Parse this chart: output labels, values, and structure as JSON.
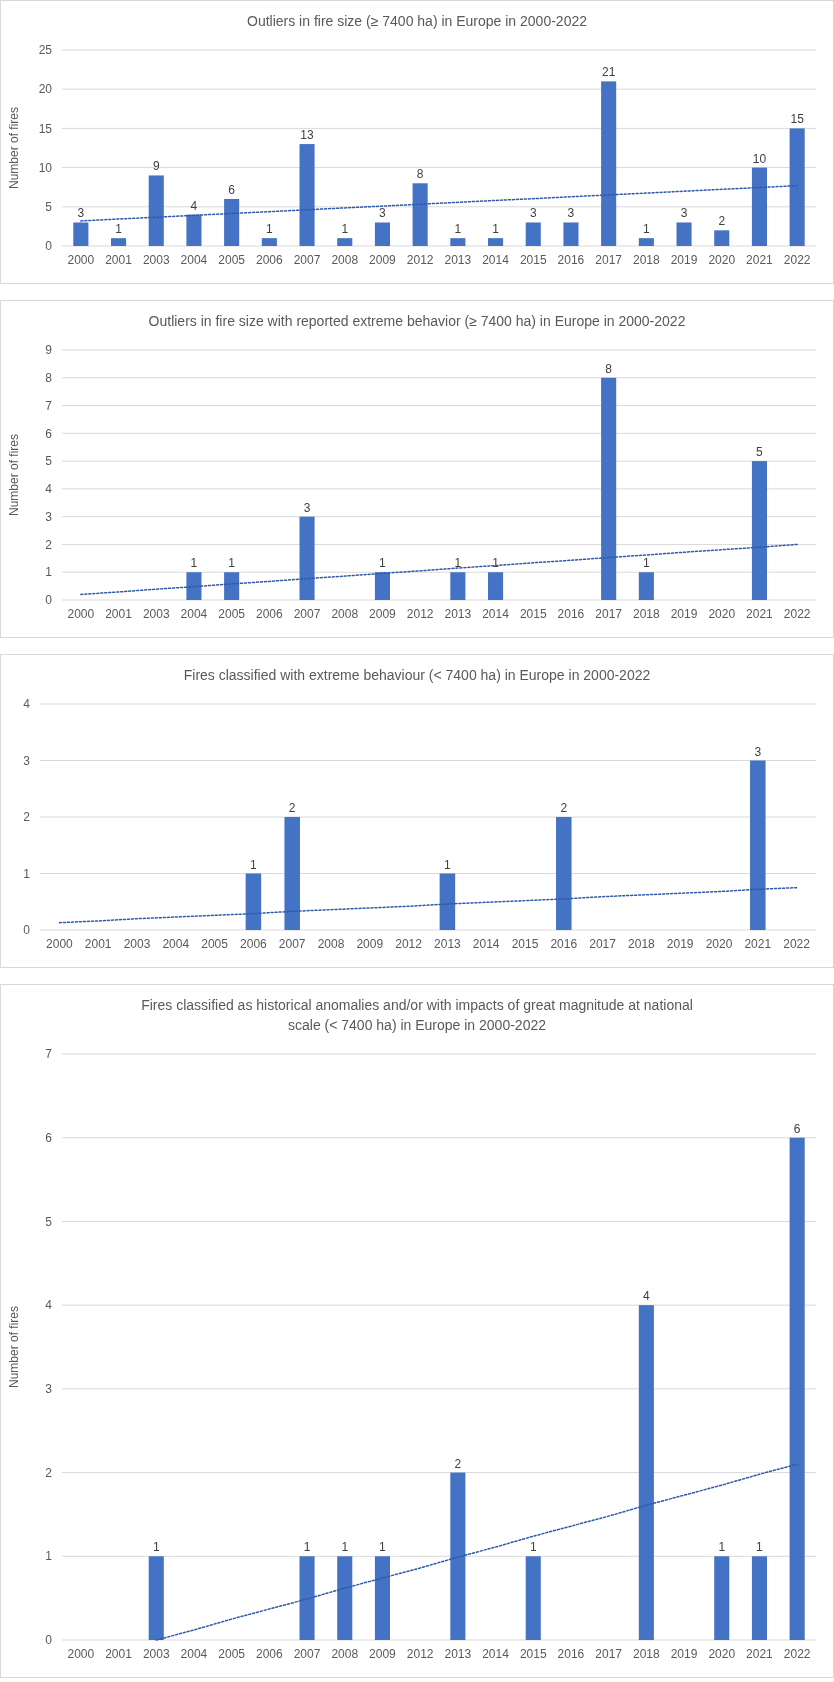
{
  "chart_data": [
    {
      "type": "bar",
      "title": "Outliers in fire size (≥ 7400 ha) in Europe in 2000-2022",
      "ylabel": "Number of fires",
      "categories": [
        "2000",
        "2001",
        "2003",
        "2004",
        "2005",
        "2006",
        "2007",
        "2008",
        "2009",
        "2012",
        "2013",
        "2014",
        "2015",
        "2016",
        "2017",
        "2018",
        "2019",
        "2020",
        "2021",
        "2022"
      ],
      "series": [
        {
          "color": "#4472c4",
          "values": [
            3,
            1,
            9,
            4,
            6,
            1,
            13,
            1,
            3,
            8,
            1,
            1,
            3,
            3,
            21,
            1,
            3,
            2,
            10,
            15
          ],
          "value_labels": [
            "3",
            "1",
            "9",
            "4",
            "6",
            "1",
            "13",
            "1",
            "3",
            "8",
            "1",
            "1",
            "3",
            "3",
            "21",
            "1",
            "3",
            "2",
            "10",
            "15"
          ]
        },
        {
          "type": "line",
          "color": "#2e5aa8",
          "line_style": "dotted",
          "values": [
            3.2,
            3.44,
            3.67,
            3.91,
            4.15,
            4.38,
            4.62,
            4.86,
            5.09,
            5.33,
            5.57,
            5.81,
            6.04,
            6.28,
            6.52,
            6.75,
            6.99,
            7.23,
            7.46,
            7.7
          ]
        }
      ],
      "ylim": [
        0,
        25
      ],
      "yticks": [
        0,
        5,
        10,
        15,
        20,
        25
      ],
      "grid": "y"
    },
    {
      "type": "bar",
      "title": "Outliers in fire size with reported extreme behavior (≥ 7400 ha) in Europe in 2000-2022",
      "ylabel": "Number of fires",
      "categories": [
        "2000",
        "2001",
        "2003",
        "2004",
        "2005",
        "2006",
        "2007",
        "2008",
        "2009",
        "2012",
        "2013",
        "2014",
        "2015",
        "2016",
        "2017",
        "2018",
        "2019",
        "2020",
        "2021",
        "2022"
      ],
      "series": [
        {
          "color": "#4472c4",
          "values": [
            null,
            null,
            null,
            1,
            1,
            null,
            3,
            null,
            1,
            null,
            1,
            1,
            null,
            null,
            8,
            1,
            null,
            null,
            5,
            null
          ],
          "value_labels": [
            null,
            null,
            null,
            "1",
            "1",
            null,
            "3",
            null,
            "1",
            null,
            "1",
            "1",
            null,
            null,
            "8",
            "1",
            null,
            null,
            "5",
            null
          ]
        },
        {
          "type": "line",
          "color": "#2e5aa8",
          "line_style": "dotted",
          "values": [
            0.2,
            0.29,
            0.39,
            0.48,
            0.58,
            0.67,
            0.77,
            0.86,
            0.96,
            1.05,
            1.15,
            1.24,
            1.34,
            1.43,
            1.53,
            1.62,
            1.72,
            1.81,
            1.9,
            2.0
          ]
        }
      ],
      "ylim": [
        0,
        9
      ],
      "yticks": [
        0,
        1,
        2,
        3,
        4,
        5,
        6,
        7,
        8,
        9
      ],
      "grid": "y"
    },
    {
      "type": "bar",
      "title": "Fires classified with extreme behaviour (< 7400 ha) in Europe in 2000-2022",
      "categories": [
        "2000",
        "2001",
        "2003",
        "2004",
        "2005",
        "2006",
        "2007",
        "2008",
        "2009",
        "2012",
        "2013",
        "2014",
        "2015",
        "2016",
        "2017",
        "2018",
        "2019",
        "2020",
        "2021",
        "2022"
      ],
      "series": [
        {
          "color": "#4472c4",
          "values": [
            null,
            null,
            null,
            null,
            null,
            1,
            2,
            null,
            null,
            null,
            1,
            null,
            null,
            2,
            null,
            null,
            null,
            null,
            3,
            null
          ],
          "value_labels": [
            null,
            null,
            null,
            null,
            null,
            "1",
            "2",
            null,
            null,
            null,
            "1",
            null,
            null,
            "2",
            null,
            null,
            null,
            null,
            "3",
            null
          ]
        },
        {
          "type": "line",
          "color": "#2e5aa8",
          "line_style": "dotted",
          "values": [
            0.13,
            0.16,
            0.2,
            0.23,
            0.26,
            0.29,
            0.33,
            0.36,
            0.39,
            0.42,
            0.46,
            0.49,
            0.52,
            0.55,
            0.59,
            0.62,
            0.65,
            0.68,
            0.72,
            0.75
          ]
        }
      ],
      "ylim": [
        0,
        4
      ],
      "yticks": [
        0,
        1,
        2,
        3,
        4
      ],
      "grid": "y"
    },
    {
      "type": "bar",
      "title": "Fires classified as historical anomalies and/or with impacts of great magnitude at national scale (< 7400 ha) in Europe in 2000-2022",
      "ylabel": "Number of fires",
      "categories": [
        "2000",
        "2001",
        "2003",
        "2004",
        "2005",
        "2006",
        "2007",
        "2008",
        "2009",
        "2012",
        "2013",
        "2014",
        "2015",
        "2016",
        "2017",
        "2018",
        "2019",
        "2020",
        "2021",
        "2022"
      ],
      "series": [
        {
          "color": "#4472c4",
          "values": [
            null,
            null,
            1,
            null,
            null,
            null,
            1,
            1,
            1,
            null,
            2,
            null,
            1,
            null,
            null,
            4,
            null,
            1,
            1,
            6
          ],
          "value_labels": [
            null,
            null,
            "1",
            null,
            null,
            null,
            "1",
            "1",
            "1",
            null,
            "2",
            null,
            "1",
            null,
            null,
            "4",
            null,
            "1",
            "1",
            "6"
          ]
        },
        {
          "type": "line",
          "color": "#2e5aa8",
          "line_style": "dotted",
          "values": [
            null,
            null,
            0,
            0.12,
            0.25,
            0.37,
            0.49,
            0.62,
            0.74,
            0.86,
            0.99,
            1.11,
            1.24,
            1.36,
            1.48,
            1.61,
            1.73,
            1.85,
            1.98,
            2.1
          ]
        }
      ],
      "ylim": [
        0,
        7
      ],
      "yticks": [
        0,
        1,
        2,
        3,
        4,
        5,
        6,
        7
      ],
      "grid": "y"
    }
  ]
}
